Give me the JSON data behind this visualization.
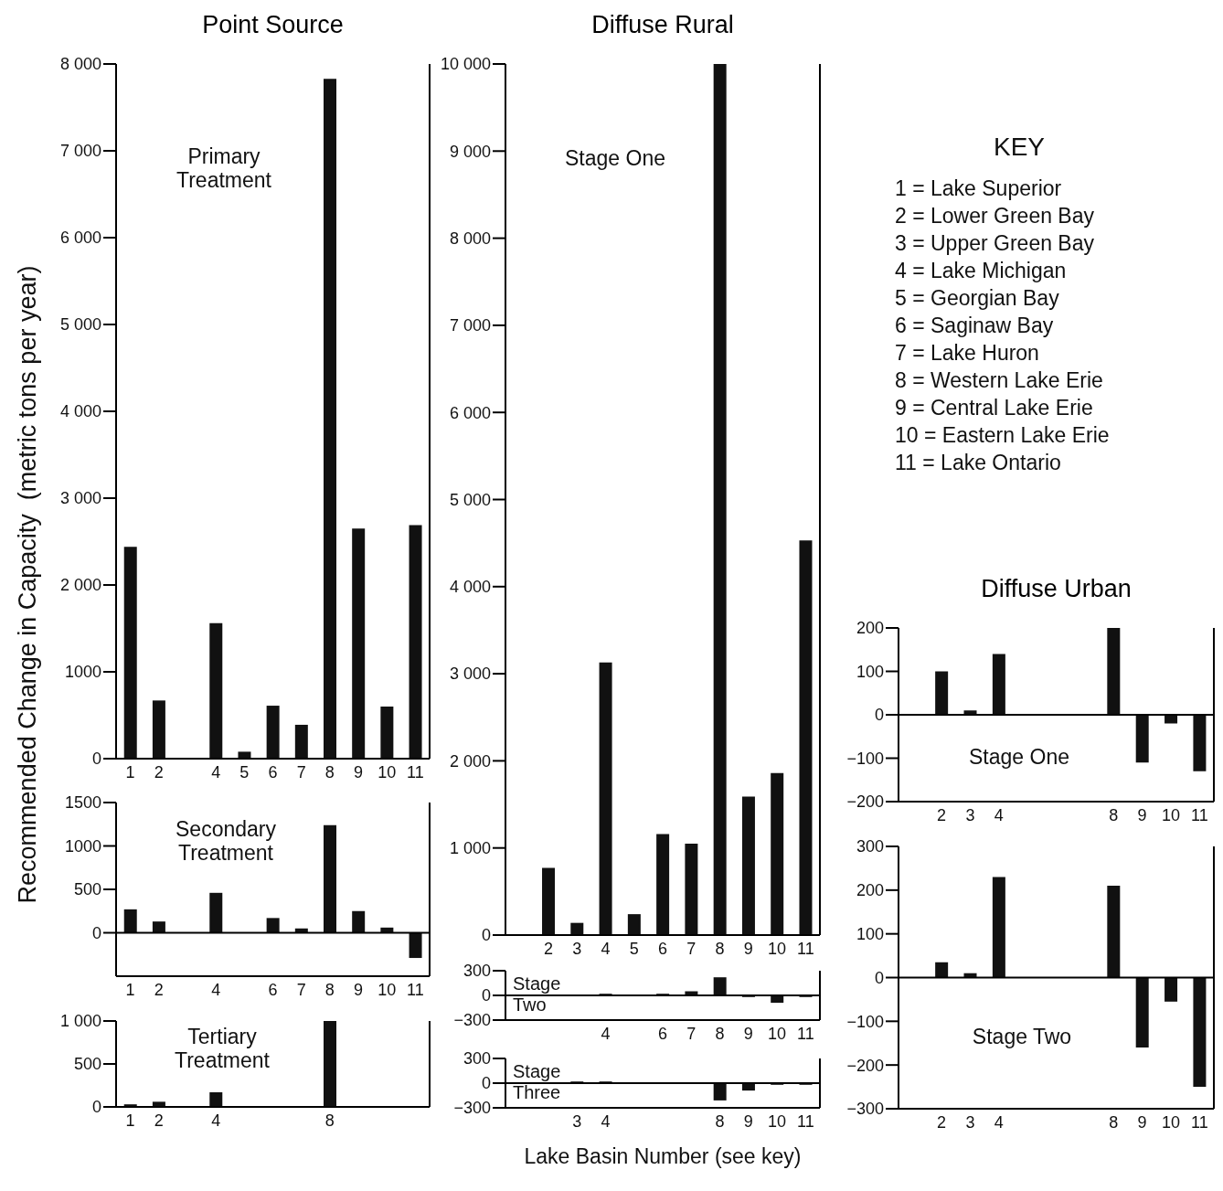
{
  "chart_data": [
    {
      "type": "bar",
      "title": "Point Source",
      "subtitle": "Primary Treatment",
      "ylabel": "Recommended Change in Capacity  (metric tons per year)",
      "color": "#111111",
      "categories": [
        "1",
        "2",
        null,
        "4",
        "5",
        "6",
        "7",
        "8",
        "9",
        "10",
        "11"
      ],
      "values": [
        2440,
        670,
        null,
        1560,
        80,
        610,
        390,
        7830,
        2650,
        600,
        2690
      ],
      "ylim": [
        0,
        8000
      ],
      "yticks": [
        0,
        {
          "value": 1000,
          "label": "1000"
        },
        {
          "value": 2000,
          "label": "2 000"
        },
        {
          "value": 3000,
          "label": "3 000"
        },
        {
          "value": 4000,
          "label": "4 000"
        },
        {
          "value": 5000,
          "label": "5 000"
        },
        {
          "value": 6000,
          "label": "6 000"
        },
        {
          "value": 7000,
          "label": "7 000"
        },
        {
          "value": 8000,
          "label": "8 000"
        }
      ]
    },
    {
      "type": "bar",
      "subtitle": "Secondary Treatment",
      "color": "#111111",
      "categories": [
        "1",
        "2",
        null,
        "4",
        null,
        "6",
        "7",
        "8",
        "9",
        "10",
        "11"
      ],
      "values": [
        270,
        130,
        null,
        460,
        null,
        170,
        50,
        1240,
        250,
        60,
        -290
      ],
      "ylim": [
        -500,
        1500
      ],
      "yticks": [
        0,
        500,
        1000,
        1500
      ]
    },
    {
      "type": "bar",
      "subtitle": "Tertiary Treatment",
      "color": "#111111",
      "categories": [
        "1",
        "2",
        null,
        "4",
        null,
        null,
        null,
        "8",
        null,
        null,
        null
      ],
      "values": [
        30,
        60,
        null,
        170,
        null,
        null,
        null,
        1000,
        null,
        null,
        null
      ],
      "ylim": [
        0,
        1000
      ],
      "yticks": [
        0,
        500,
        {
          "value": 1000,
          "label": "1 000"
        }
      ]
    },
    {
      "type": "bar",
      "title": "Diffuse Rural",
      "subtitle": "Stage One",
      "color": "#111111",
      "categories": [
        null,
        "2",
        "3",
        "4",
        "5",
        "6",
        "7",
        "8",
        "9",
        "10",
        "11"
      ],
      "values": [
        null,
        770,
        140,
        3130,
        240,
        1160,
        1050,
        10000,
        1590,
        1860,
        4530
      ],
      "ylim": [
        0,
        10000
      ],
      "yticks": [
        0,
        {
          "value": 1000,
          "label": "1 000"
        },
        {
          "value": 2000,
          "label": "2 000"
        },
        {
          "value": 3000,
          "label": "3 000"
        },
        {
          "value": 4000,
          "label": "4 000"
        },
        {
          "value": 5000,
          "label": "5 000"
        },
        {
          "value": 6000,
          "label": "6 000"
        },
        {
          "value": 7000,
          "label": "7 000"
        },
        {
          "value": 8000,
          "label": "8 000"
        },
        {
          "value": 9000,
          "label": "9 000"
        },
        {
          "value": 10000,
          "label": "10 000"
        }
      ]
    },
    {
      "type": "bar",
      "subtitle": "Stage Two",
      "color": "#111111",
      "categories": [
        null,
        null,
        null,
        "4",
        null,
        "6",
        "7",
        "8",
        "9",
        "10",
        "11"
      ],
      "values": [
        null,
        null,
        null,
        20,
        null,
        20,
        50,
        220,
        -20,
        -90,
        -20
      ],
      "ylim": [
        -300,
        300
      ],
      "yticks": [
        {
          "value": -300,
          "label": "−300"
        },
        0,
        300
      ]
    },
    {
      "type": "bar",
      "subtitle": "Stage Three",
      "xlabel": "Lake Basin Number (see key)",
      "color": "#111111",
      "categories": [
        null,
        null,
        "3",
        "4",
        null,
        null,
        null,
        "8",
        "9",
        "10",
        "11"
      ],
      "values": [
        null,
        null,
        20,
        20,
        null,
        null,
        null,
        -210,
        -90,
        -20,
        -20
      ],
      "ylim": [
        -300,
        300
      ],
      "yticks": [
        {
          "value": -300,
          "label": "−300"
        },
        0,
        300
      ]
    },
    {
      "type": "bar",
      "title": "Diffuse Urban",
      "subtitle": "Stage One",
      "color": "#111111",
      "categories": [
        null,
        "2",
        "3",
        "4",
        null,
        null,
        null,
        "8",
        "9",
        "10",
        "11"
      ],
      "values": [
        null,
        100,
        10,
        140,
        null,
        null,
        null,
        200,
        -110,
        -20,
        -130
      ],
      "ylim": [
        -200,
        200
      ],
      "yticks": [
        {
          "value": -200,
          "label": "−200"
        },
        {
          "value": -100,
          "label": "−100"
        },
        0,
        100,
        200
      ]
    },
    {
      "type": "bar",
      "subtitle": "Stage Two",
      "color": "#111111",
      "categories": [
        null,
        "2",
        "3",
        "4",
        null,
        null,
        null,
        "8",
        "9",
        "10",
        "11"
      ],
      "values": [
        null,
        35,
        10,
        230,
        null,
        null,
        null,
        210,
        -160,
        -55,
        -250
      ],
      "ylim": [
        -300,
        300
      ],
      "yticks": [
        {
          "value": -300,
          "label": "−300"
        },
        {
          "value": -200,
          "label": "−200"
        },
        {
          "value": -100,
          "label": "−100"
        },
        0,
        100,
        200,
        300
      ]
    },
    {
      "type": "other",
      "title": "KEY",
      "annotations": [
        "1 = Lake Superior",
        "2 = Lower Green Bay",
        "3 = Upper Green Bay",
        "4 = Lake Michigan",
        "5 = Georgian Bay",
        "6 = Saginaw Bay",
        "7 = Lake Huron",
        "8 = Western Lake Erie",
        "9 = Central Lake Erie",
        "10 = Eastern Lake Erie",
        "11 = Lake Ontario"
      ]
    }
  ]
}
